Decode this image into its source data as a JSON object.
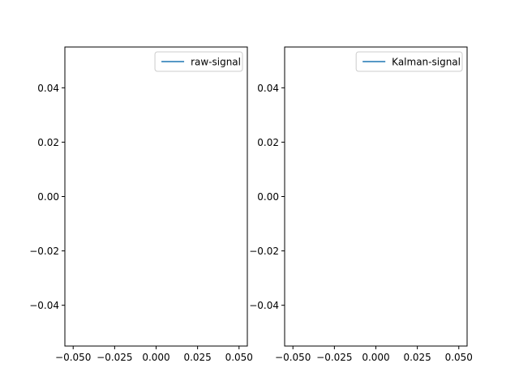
{
  "chart_data": [
    {
      "type": "line",
      "title": "",
      "xlabel": "",
      "ylabel": "",
      "xlim": [
        -0.055,
        0.055
      ],
      "ylim": [
        -0.055,
        0.055
      ],
      "xticks": [
        -0.05,
        -0.025,
        0.0,
        0.025,
        0.05
      ],
      "xtick_labels": [
        "−0.050",
        "−0.025",
        "0.000",
        "0.025",
        "0.050"
      ],
      "yticks": [
        -0.04,
        -0.02,
        0.0,
        0.02,
        0.04
      ],
      "ytick_labels": [
        "−0.04",
        "−0.02",
        "0.00",
        "0.02",
        "0.04"
      ],
      "grid": false,
      "legend_position": "top-right",
      "series": [
        {
          "name": "raw-signal",
          "color": "#1f77b4",
          "x": [],
          "y": []
        }
      ]
    },
    {
      "type": "line",
      "title": "",
      "xlabel": "",
      "ylabel": "",
      "xlim": [
        -0.055,
        0.055
      ],
      "ylim": [
        -0.055,
        0.055
      ],
      "xticks": [
        -0.05,
        -0.025,
        0.0,
        0.025,
        0.05
      ],
      "xtick_labels": [
        "−0.050",
        "−0.025",
        "0.000",
        "0.025",
        "0.050"
      ],
      "yticks": [
        -0.04,
        -0.02,
        0.0,
        0.02,
        0.04
      ],
      "ytick_labels": [
        "−0.04",
        "−0.02",
        "0.00",
        "0.02",
        "0.04"
      ],
      "grid": false,
      "legend_position": "top-right",
      "series": [
        {
          "name": "Kalman-signal",
          "color": "#1f77b4",
          "x": [],
          "y": []
        }
      ]
    }
  ]
}
